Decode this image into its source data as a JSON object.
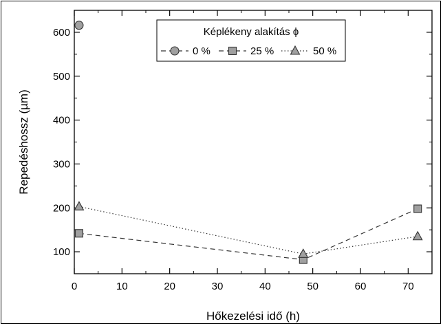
{
  "chart_data": {
    "type": "line",
    "xlabel": "Hőkezelési idő (h)",
    "ylabel": "Repedéshossz (µm)",
    "xlim": [
      0,
      75
    ],
    "ylim": [
      50,
      650
    ],
    "x_ticks": [
      0,
      10,
      20,
      30,
      40,
      50,
      60,
      70
    ],
    "y_ticks": [
      100,
      200,
      300,
      400,
      500,
      600
    ],
    "legend": {
      "title": "Képlékeny alakítás ϕ",
      "placement": "top-center"
    },
    "series": [
      {
        "name": "0 %",
        "marker": "circle",
        "line_style": "dashed",
        "x": [
          1
        ],
        "y": [
          616
        ]
      },
      {
        "name": "25 %",
        "marker": "square",
        "line_style": "dashed",
        "x": [
          1,
          48,
          72
        ],
        "y": [
          142,
          82,
          198
        ]
      },
      {
        "name": "50 %",
        "marker": "triangle",
        "line_style": "dotted",
        "x": [
          1,
          48,
          72
        ],
        "y": [
          203,
          95,
          135
        ]
      }
    ],
    "colors": {
      "marker_fill": "#a0a0a0",
      "line": "#333333",
      "axis": "#000000"
    }
  }
}
